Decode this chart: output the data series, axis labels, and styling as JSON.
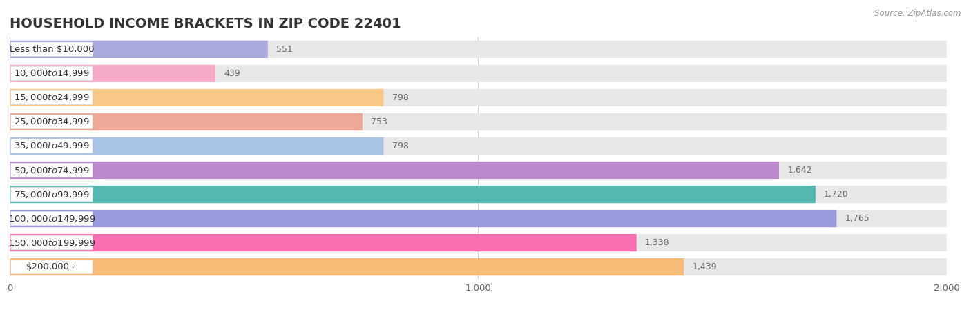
{
  "title": "HOUSEHOLD INCOME BRACKETS IN ZIP CODE 22401",
  "source": "Source: ZipAtlas.com",
  "categories": [
    "Less than $10,000",
    "$10,000 to $14,999",
    "$15,000 to $24,999",
    "$25,000 to $34,999",
    "$35,000 to $49,999",
    "$50,000 to $74,999",
    "$75,000 to $99,999",
    "$100,000 to $149,999",
    "$150,000 to $199,999",
    "$200,000+"
  ],
  "values": [
    551,
    439,
    798,
    753,
    798,
    1642,
    1720,
    1765,
    1338,
    1439
  ],
  "bar_colors": [
    "#aaaadd",
    "#f5aac8",
    "#f8c888",
    "#f0a898",
    "#aac4e8",
    "#bb88cc",
    "#55b8b0",
    "#9999dd",
    "#f870b0",
    "#f8bc78"
  ],
  "xlim": [
    0,
    2000
  ],
  "xticks": [
    0,
    1000,
    2000
  ],
  "row_bg_color": "#e8e8e8",
  "label_bg_color": "#ffffff",
  "title_fontsize": 14,
  "label_fontsize": 9.5,
  "value_fontsize": 9
}
